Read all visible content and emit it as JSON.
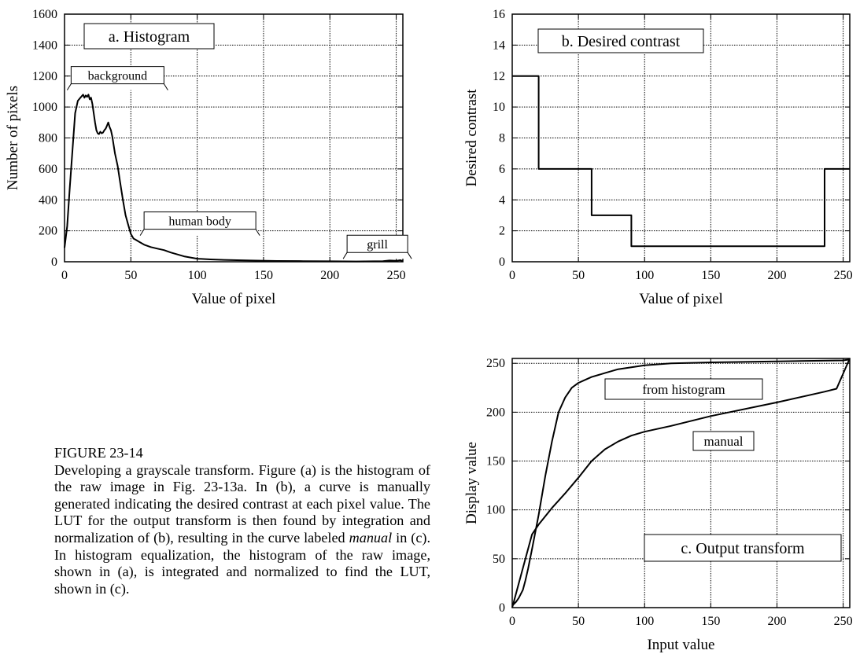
{
  "figure": {
    "label": "FIGURE 23-14",
    "caption_parts": [
      "Developing a grayscale transform.  Figure (a) is the histogram of the raw image in Fig. 23-13a. In (b), a curve is manually generated indicating the desired contrast at each pixel value. The LUT for the output transform is then found by integration and normalization of (b), resulting in the curve labeled ",
      "manual",
      " in (c). In histogram equalization, the histogram of the raw image, shown in (a), is integrated and normalized to find the LUT, shown in (c)."
    ]
  },
  "chart_data": [
    {
      "type": "line",
      "title": "a.  Histogram",
      "xlabel": "Value of pixel",
      "ylabel": "Number of pixels",
      "xlim": [
        0,
        255
      ],
      "ylim": [
        0,
        1600
      ],
      "xticks": [
        0,
        50,
        100,
        150,
        200,
        250
      ],
      "yticks": [
        0,
        200,
        400,
        600,
        800,
        1000,
        1200,
        1400,
        1600
      ],
      "grid": true,
      "annotations": [
        {
          "text": "background",
          "x_start": 2,
          "x_end": 70
        },
        {
          "text": "human body",
          "x_start": 57,
          "x_end": 140
        },
        {
          "text": "grill",
          "x_start": 210,
          "x_end": 252
        }
      ],
      "series": [
        {
          "x": [
            0,
            2,
            4,
            6,
            8,
            10,
            12,
            14,
            15,
            16,
            17,
            18,
            19,
            20,
            21,
            22,
            23,
            24,
            25,
            26,
            27,
            28,
            29,
            30,
            31,
            32,
            33,
            34,
            35,
            36,
            38,
            40,
            42,
            44,
            46,
            48,
            50,
            52,
            54,
            56,
            60,
            65,
            70,
            75,
            80,
            90,
            100,
            110,
            120,
            140,
            160,
            180,
            200,
            220,
            240,
            245,
            250,
            253,
            255
          ],
          "y": [
            90,
            230,
            480,
            720,
            960,
            1040,
            1060,
            1080,
            1060,
            1075,
            1065,
            1080,
            1050,
            1060,
            1020,
            960,
            900,
            850,
            830,
            825,
            840,
            830,
            835,
            850,
            860,
            880,
            900,
            870,
            850,
            810,
            700,
            620,
            510,
            400,
            300,
            240,
            180,
            150,
            140,
            130,
            110,
            95,
            85,
            75,
            60,
            35,
            20,
            15,
            12,
            8,
            5,
            4,
            3,
            2,
            4,
            8,
            6,
            10,
            4
          ]
        }
      ]
    },
    {
      "type": "line",
      "title": "b.  Desired contrast",
      "xlabel": "Value of pixel",
      "ylabel": "Desired contrast",
      "xlim": [
        0,
        255
      ],
      "ylim": [
        0,
        16
      ],
      "xticks": [
        0,
        50,
        100,
        150,
        200,
        250
      ],
      "yticks": [
        0,
        2,
        4,
        6,
        8,
        10,
        12,
        14,
        16
      ],
      "grid": true,
      "series": [
        {
          "x": [
            0,
            20,
            20,
            60,
            60,
            90,
            90,
            236,
            236,
            255
          ],
          "y": [
            12,
            12,
            6,
            6,
            3,
            3,
            1,
            1,
            6,
            6
          ]
        }
      ]
    },
    {
      "type": "line",
      "title": "c.  Output transform",
      "xlabel": "Input value",
      "ylabel": "Display value",
      "xlim": [
        0,
        255
      ],
      "ylim": [
        0,
        255
      ],
      "xticks": [
        0,
        50,
        100,
        150,
        200,
        250
      ],
      "yticks": [
        0,
        50,
        100,
        150,
        200,
        250
      ],
      "grid": true,
      "annotations": [
        {
          "text": "from histogram",
          "series": 0
        },
        {
          "text": "manual",
          "series": 1
        }
      ],
      "series": [
        {
          "x": [
            0,
            3,
            5,
            8,
            10,
            12,
            15,
            20,
            25,
            30,
            35,
            40,
            45,
            50,
            55,
            60,
            70,
            80,
            90,
            100,
            120,
            150,
            200,
            250,
            255
          ],
          "y": [
            2,
            6,
            10,
            18,
            28,
            40,
            60,
            95,
            135,
            170,
            200,
            215,
            225,
            230,
            233,
            236,
            240,
            244,
            246,
            248,
            250,
            251,
            252,
            253,
            254
          ]
        },
        {
          "x": [
            0,
            5,
            10,
            15,
            20,
            30,
            40,
            50,
            60,
            70,
            80,
            90,
            100,
            120,
            150,
            200,
            236,
            245,
            255
          ],
          "y": [
            0,
            25,
            50,
            75,
            85,
            102,
            117,
            133,
            150,
            162,
            170,
            176,
            180,
            186,
            196,
            210,
            221,
            224,
            255
          ]
        }
      ]
    }
  ]
}
